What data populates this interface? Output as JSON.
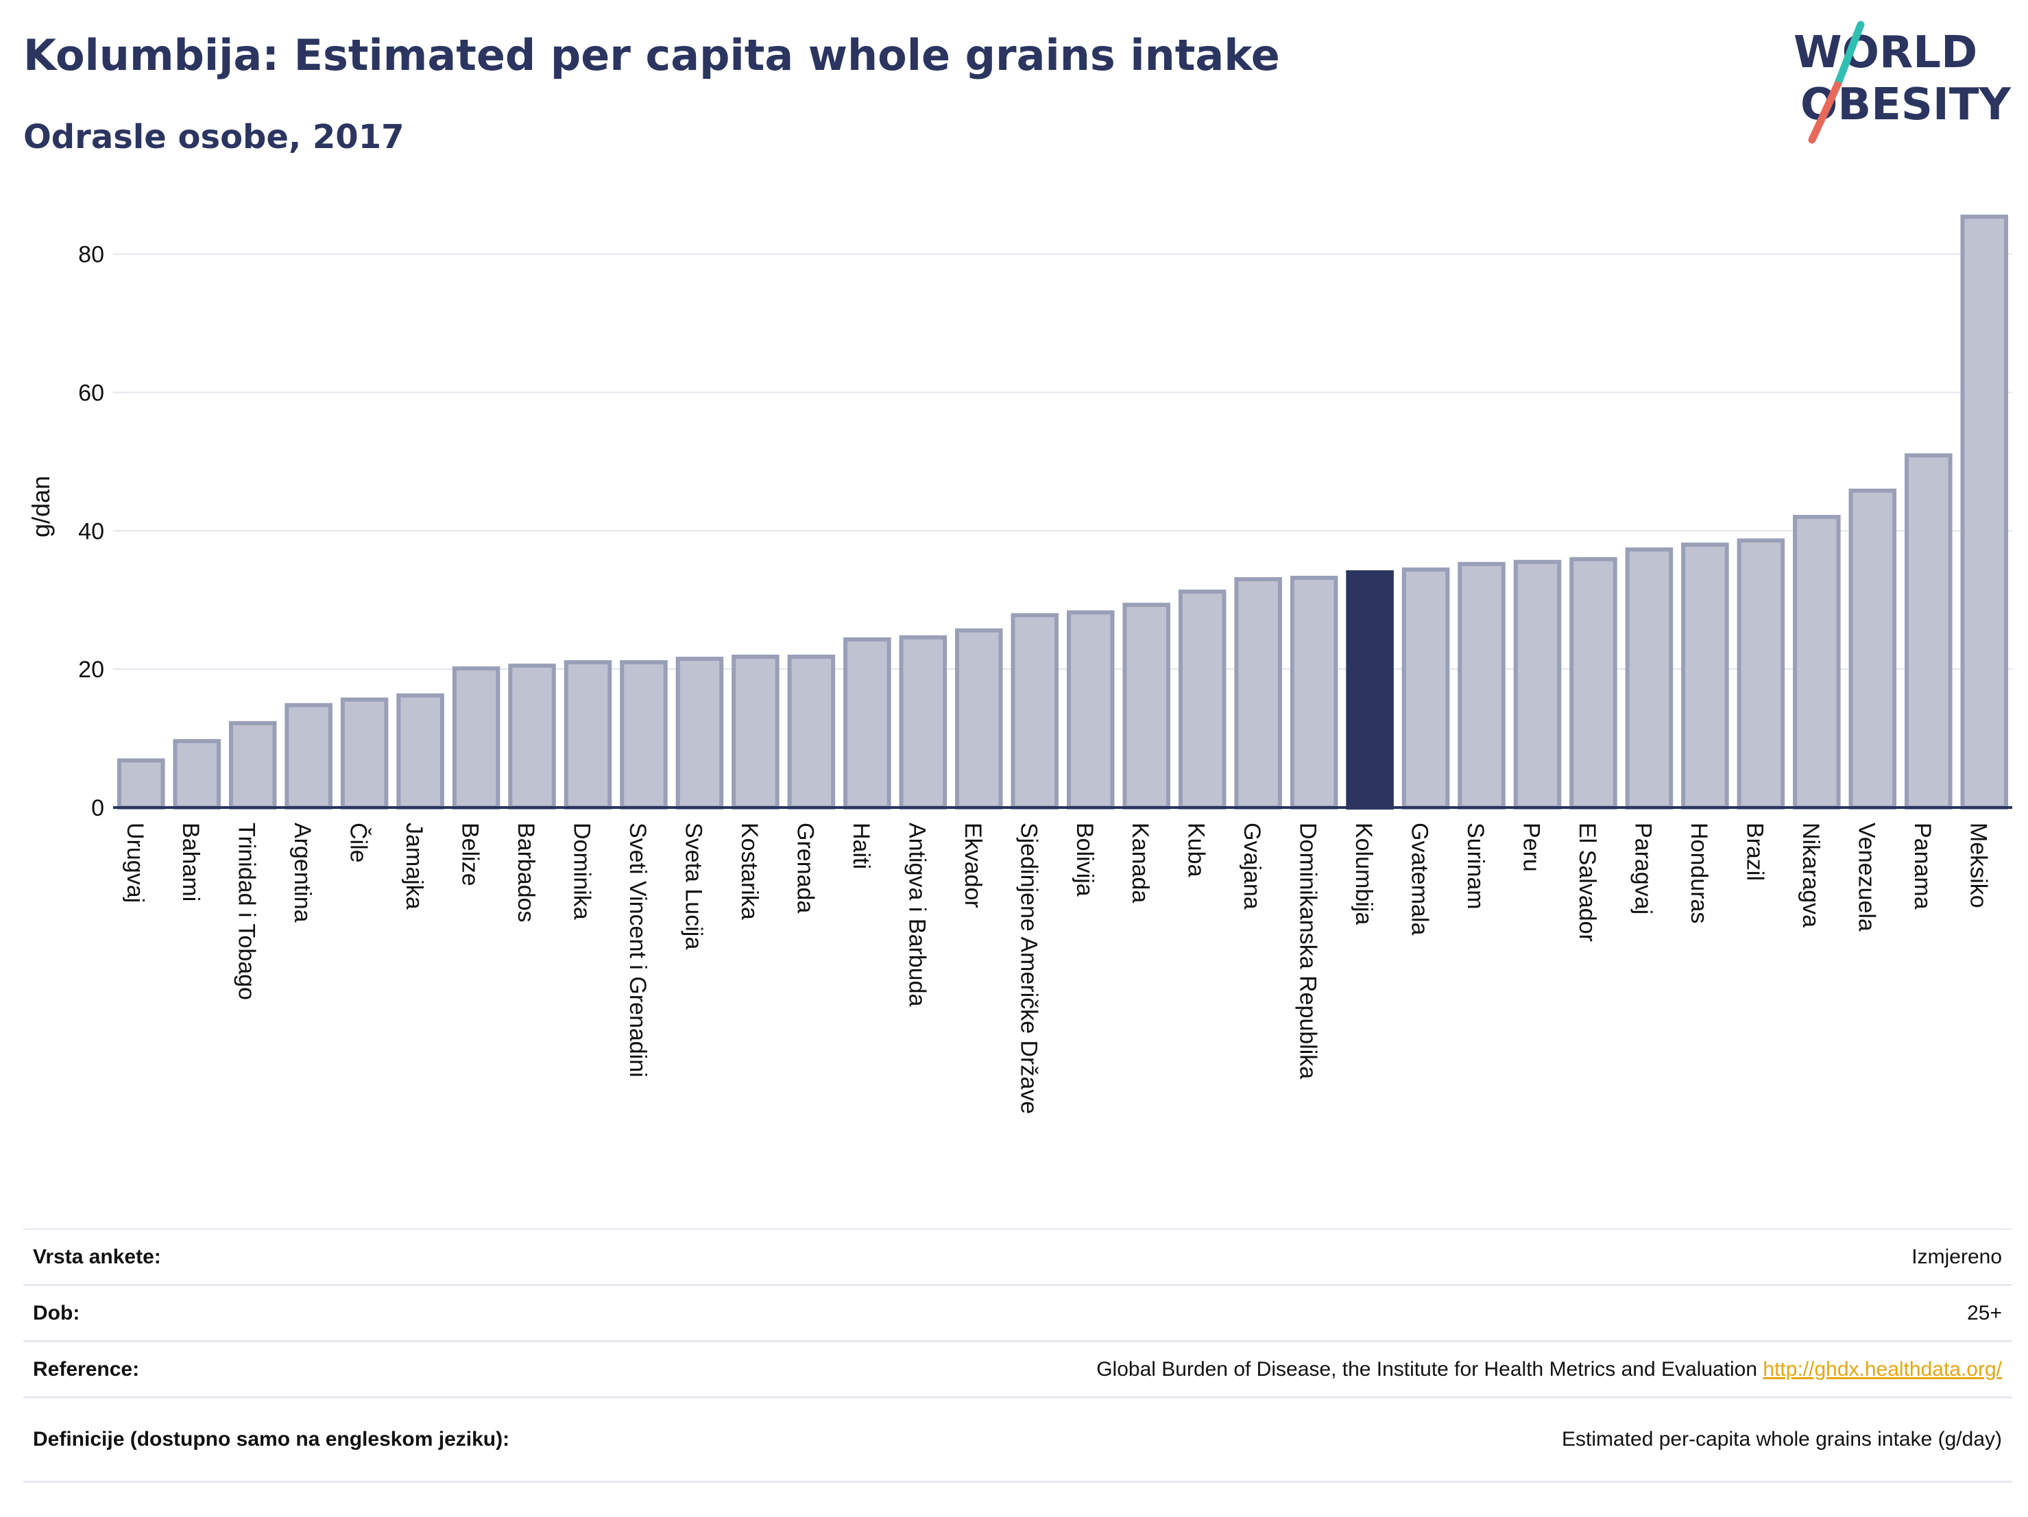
{
  "header": {
    "title": "Kolumbija: Estimated per capita whole grains intake",
    "subtitle": "Odrasle osobe, 2017"
  },
  "logo": {
    "line1": "WORLD",
    "line2": "OBESITY",
    "colors": {
      "text": "#2b3560",
      "slash_top": "#2fbfb3",
      "slash_bottom": "#e8695a"
    }
  },
  "colors": {
    "bar": "#bfc2d0",
    "bar_stroke": "#9a9fb8",
    "highlight": "#2b3560",
    "grid": "#e3e5ed",
    "axis": "#2b3560",
    "text": "#111111"
  },
  "chart_data": {
    "type": "bar",
    "title": "Kolumbija: Estimated per capita whole grains intake",
    "subtitle": "Odrasle osobe, 2017",
    "xlabel": "",
    "ylabel": "g/dan",
    "ylim": [
      0,
      87
    ],
    "yticks": [
      0,
      20,
      40,
      60,
      80
    ],
    "grid": true,
    "highlight": "Kolumbija",
    "categories": [
      "Urugvaj",
      "Bahami",
      "Trinidad i Tobago",
      "Argentina",
      "Čile",
      "Jamajka",
      "Belize",
      "Barbados",
      "Dominika",
      "Sveti Vincent i Grenadini",
      "Sveta Lucija",
      "Kostarika",
      "Grenada",
      "Haiti",
      "Antigva i Barbuda",
      "Ekvador",
      "Sjedinjene Američke Države",
      "Bolivija",
      "Kanada",
      "Kuba",
      "Gvajana",
      "Dominikanska Republika",
      "Kolumbija",
      "Gvatemala",
      "Surinam",
      "Peru",
      "El Salvador",
      "Paragvaj",
      "Honduras",
      "Brazil",
      "Nikaragva",
      "Venezuela",
      "Panama",
      "Meksiko"
    ],
    "values": [
      6.8,
      9.6,
      12.2,
      14.8,
      15.6,
      16.2,
      20.1,
      20.5,
      21.0,
      21.0,
      21.5,
      21.8,
      21.8,
      24.3,
      24.6,
      25.6,
      27.8,
      28.2,
      29.3,
      31.2,
      33.0,
      33.2,
      34.0,
      34.4,
      35.2,
      35.5,
      35.9,
      37.3,
      38.0,
      38.6,
      42.0,
      45.8,
      50.9,
      85.4
    ]
  },
  "info_table": [
    {
      "label": "Vrsta ankete:",
      "value": "Izmjereno"
    },
    {
      "label": "Dob:",
      "value": "25+"
    },
    {
      "label": "Reference:",
      "value": "Global Burden of Disease, the Institute for Health Metrics and Evaluation",
      "link": "http://ghdx.healthdata.org/"
    },
    {
      "label": "Definicije (dostupno samo na engleskom jeziku):",
      "value": "Estimated per-capita whole grains intake (g/day)"
    }
  ]
}
